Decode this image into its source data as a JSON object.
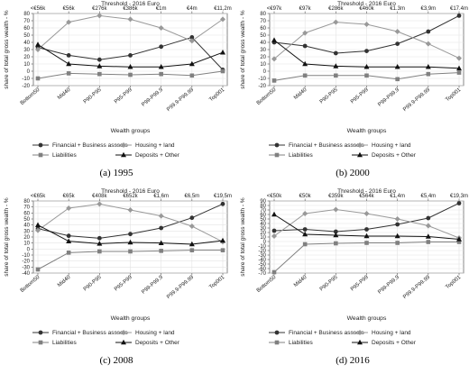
{
  "figure": {
    "panels": [
      {
        "caption": "(a)  1995",
        "threshold_title": "Threshold - 2016 Euro",
        "thresholds": [
          "<€56k",
          "€56k",
          "€276k",
          "€386k",
          "€1m",
          "€4m",
          "€11,2m"
        ],
        "ylabel": "share of total gross wealth - %",
        "xlabel": "Wealth groups"
      },
      {
        "caption": "(b)  2000",
        "threshold_title": "Threshold - 2016 Euro",
        "thresholds": [
          "<€97k",
          "€97k",
          "€286k",
          "€460k",
          "€1.3m",
          "€3,9m",
          "€17.4m"
        ],
        "ylabel": "share of total gross wealth - %",
        "xlabel": "Wealth groups"
      },
      {
        "caption": "(c)  2008",
        "threshold_title": "Threshold - 2016 Euro",
        "thresholds": [
          "<€65k",
          "€65k",
          "€408k",
          "€652k",
          "€1,6m",
          "€6,5m",
          "€19,5m"
        ],
        "ylabel": "share of total gross wealth - %",
        "xlabel": "Wealth groups"
      },
      {
        "caption": "(d)  2016",
        "threshold_title": "Threshold - 2016 Euro",
        "thresholds": [
          "<€50k",
          "€50k",
          "€359k",
          "€564k",
          "€1,4m",
          "€5,4m",
          "€19,3m"
        ],
        "ylabel": "share of total gross wealth - %",
        "xlabel": "Wealth groups"
      }
    ],
    "legend": [
      {
        "name": "Financial + Business asssets",
        "color": "#333333",
        "marker": "circle"
      },
      {
        "name": "Housing + land",
        "color": "#999999",
        "marker": "diamond"
      },
      {
        "name": "Liabilities",
        "color": "#808080",
        "marker": "square"
      },
      {
        "name": "Deposits + Other",
        "color": "#111111",
        "marker": "triangle"
      }
    ]
  },
  "chart_data": [
    {
      "type": "line",
      "title": "1995",
      "categories": [
        "Bottom50",
        "Mid40",
        "P90-P95",
        "P95-P99",
        "P99-P99.9",
        "P99.9-P99.99",
        "Top001"
      ],
      "ylim": [
        -20,
        80
      ],
      "yticks": [
        -20,
        -10,
        0,
        10,
        20,
        30,
        40,
        50,
        60,
        70,
        80
      ],
      "grid": true,
      "series": [
        {
          "name": "Financial + Business asssets",
          "values": [
            33,
            22,
            16,
            22,
            34,
            47,
            2
          ]
        },
        {
          "name": "Housing + land",
          "values": [
            30,
            68,
            77,
            72,
            60,
            42,
            72
          ]
        },
        {
          "name": "Liabilities",
          "values": [
            -10,
            -3,
            -4,
            -5,
            -4,
            -6,
            0
          ]
        },
        {
          "name": "Deposits + Other",
          "values": [
            37,
            10,
            7,
            6,
            6,
            10,
            26
          ]
        }
      ]
    },
    {
      "type": "line",
      "title": "2000",
      "categories": [
        "Bottom50",
        "Mid40",
        "P90-P95",
        "P95-P99",
        "P99-P99.9",
        "P99.9-P99.99",
        "Top001"
      ],
      "ylim": [
        -20,
        80
      ],
      "yticks": [
        -20,
        -10,
        0,
        10,
        20,
        30,
        40,
        50,
        60,
        70,
        80
      ],
      "grid": true,
      "series": [
        {
          "name": "Financial + Business asssets",
          "values": [
            40,
            35,
            25,
            28,
            38,
            55,
            77
          ]
        },
        {
          "name": "Housing + land",
          "values": [
            17,
            53,
            68,
            65,
            55,
            38,
            18
          ]
        },
        {
          "name": "Liabilities",
          "values": [
            -13,
            -6,
            -6,
            -6,
            -11,
            -4,
            -2
          ]
        },
        {
          "name": "Deposits + Other",
          "values": [
            43,
            10,
            7,
            6,
            6,
            6,
            4
          ]
        }
      ]
    },
    {
      "type": "line",
      "title": "2008",
      "categories": [
        "Bottom50",
        "Mid40",
        "P90-P95",
        "P95-P99",
        "P99-P99.9",
        "P99.9-P99.99",
        "Top001"
      ],
      "ylim": [
        -40,
        80
      ],
      "yticks": [
        -40,
        -30,
        -20,
        -10,
        0,
        10,
        20,
        30,
        40,
        50,
        60,
        70,
        80
      ],
      "grid": true,
      "series": [
        {
          "name": "Financial + Business asssets",
          "values": [
            34,
            22,
            18,
            25,
            35,
            52,
            75
          ]
        },
        {
          "name": "Housing + land",
          "values": [
            31,
            68,
            75,
            65,
            55,
            38,
            12
          ]
        },
        {
          "name": "Liabilities",
          "values": [
            -34,
            -6,
            -4,
            -4,
            -3,
            -2,
            -2
          ]
        },
        {
          "name": "Deposits + Other",
          "values": [
            40,
            13,
            9,
            11,
            10,
            8,
            14
          ]
        }
      ]
    },
    {
      "type": "line",
      "title": "2016",
      "categories": [
        "Bottom50",
        "Mid40",
        "P90-P95",
        "P95-P99",
        "P99-P99.9",
        "P99.9-P99.99",
        "Top001"
      ],
      "ylim": [
        -70,
        90
      ],
      "yticks": [
        -70,
        -60,
        -50,
        -40,
        -30,
        -20,
        -10,
        0,
        10,
        20,
        30,
        40,
        50,
        60,
        70,
        80,
        90
      ],
      "grid": true,
      "series": [
        {
          "name": "Financial + Business asssets",
          "values": [
            24,
            27,
            22,
            27,
            38,
            52,
            85
          ]
        },
        {
          "name": "Housing + land",
          "values": [
            12,
            62,
            71,
            62,
            50,
            35,
            8
          ]
        },
        {
          "name": "Liabilities",
          "values": [
            -68,
            -6,
            -4,
            -3,
            -3,
            -1,
            -1
          ]
        },
        {
          "name": "Deposits + Other",
          "values": [
            60,
            16,
            14,
            12,
            12,
            11,
            5
          ]
        }
      ]
    }
  ]
}
